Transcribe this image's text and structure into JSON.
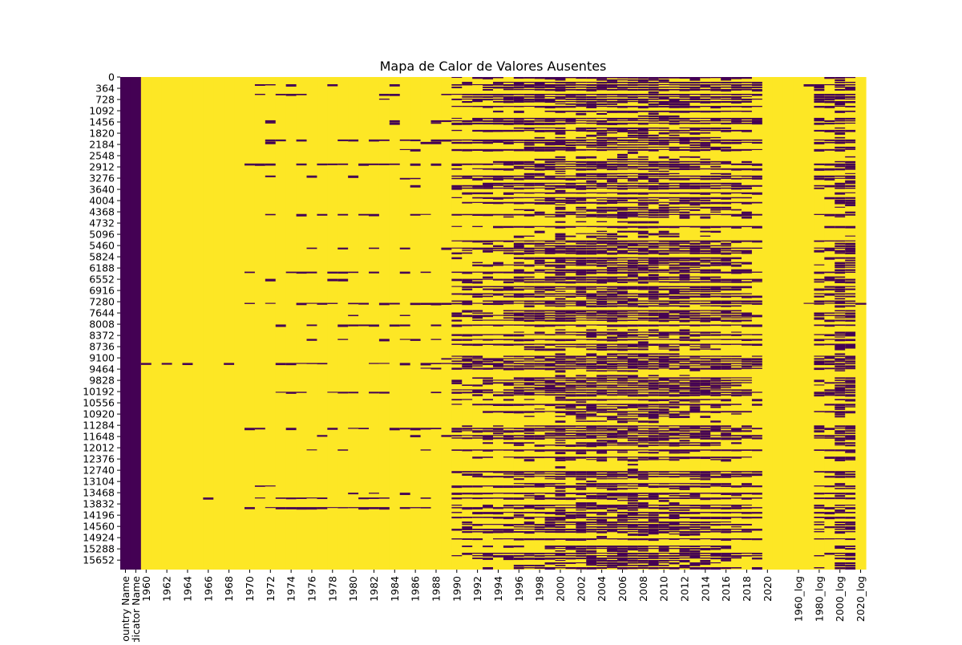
{
  "chart_data": {
    "type": "heatmap",
    "title": "Mapa de Calor de Valores Ausentes",
    "xlabel": "",
    "ylabel": "",
    "colormap": "viridis (binary)",
    "colors": {
      "present": "#440154",
      "missing": "#fde725"
    },
    "colorbar": false,
    "n_rows": 15960,
    "row_tick_labels": [
      "0",
      "364",
      "728",
      "1092",
      "1456",
      "1820",
      "2184",
      "2548",
      "2912",
      "3276",
      "3640",
      "4004",
      "4368",
      "4732",
      "5096",
      "5460",
      "5824",
      "6188",
      "6552",
      "6916",
      "7280",
      "7644",
      "8008",
      "8372",
      "8736",
      "9100",
      "9464",
      "9828",
      "10192",
      "10556",
      "10920",
      "11284",
      "11648",
      "12012",
      "12376",
      "12740",
      "13104",
      "13468",
      "13832",
      "14196",
      "14560",
      "14924",
      "15288",
      "15652"
    ],
    "columns": [
      "Country Name",
      "Indicator Name",
      "1960",
      "1961",
      "1962",
      "1963",
      "1964",
      "1965",
      "1966",
      "1967",
      "1968",
      "1969",
      "1970",
      "1971",
      "1972",
      "1973",
      "1974",
      "1975",
      "1976",
      "1977",
      "1978",
      "1979",
      "1980",
      "1981",
      "1982",
      "1983",
      "1984",
      "1985",
      "1986",
      "1987",
      "1988",
      "1989",
      "1990",
      "1991",
      "1992",
      "1993",
      "1994",
      "1995",
      "1996",
      "1997",
      "1998",
      "1999",
      "2000",
      "2001",
      "2002",
      "2003",
      "2004",
      "2005",
      "2006",
      "2007",
      "2008",
      "2009",
      "2010",
      "2011",
      "2012",
      "2013",
      "2014",
      "2015",
      "2016",
      "2017",
      "2018",
      "2019",
      "2020",
      "2021",
      "2022",
      "1960_log",
      "1970_log",
      "1980_log",
      "1990_log",
      "2000_log",
      "2010_log",
      "2020_log"
    ],
    "x_tick_labels": [
      "Country Name",
      "Indicator Name",
      "1960",
      "1962",
      "1964",
      "1966",
      "1968",
      "1970",
      "1972",
      "1974",
      "1976",
      "1978",
      "1980",
      "1982",
      "1984",
      "1986",
      "1988",
      "1990",
      "1992",
      "1994",
      "1996",
      "1998",
      "2000",
      "2002",
      "2004",
      "2006",
      "2008",
      "2010",
      "2012",
      "2014",
      "2016",
      "2018",
      "2020",
      "1960_log",
      "1980_log",
      "2000_log",
      "2020_log"
    ],
    "column_missing_fraction": [
      0,
      0,
      0.98,
      0.98,
      0.98,
      0.98,
      0.98,
      0.97,
      0.97,
      0.97,
      0.97,
      0.97,
      0.88,
      0.88,
      0.87,
      0.87,
      0.87,
      0.87,
      0.86,
      0.86,
      0.86,
      0.86,
      0.86,
      0.86,
      0.85,
      0.85,
      0.85,
      0.85,
      0.85,
      0.85,
      0.85,
      0.85,
      0.6,
      0.6,
      0.6,
      0.6,
      0.58,
      0.55,
      0.45,
      0.45,
      0.45,
      0.45,
      0.3,
      0.42,
      0.38,
      0.36,
      0.33,
      0.33,
      0.32,
      0.33,
      0.34,
      0.34,
      0.35,
      0.36,
      0.37,
      0.38,
      0.4,
      0.42,
      0.45,
      0.5,
      0.55,
      0.62,
      0.98,
      0.97,
      0.99,
      0.97,
      0.95,
      0.6,
      0.6,
      0.4,
      0.42,
      0.99
    ]
  }
}
